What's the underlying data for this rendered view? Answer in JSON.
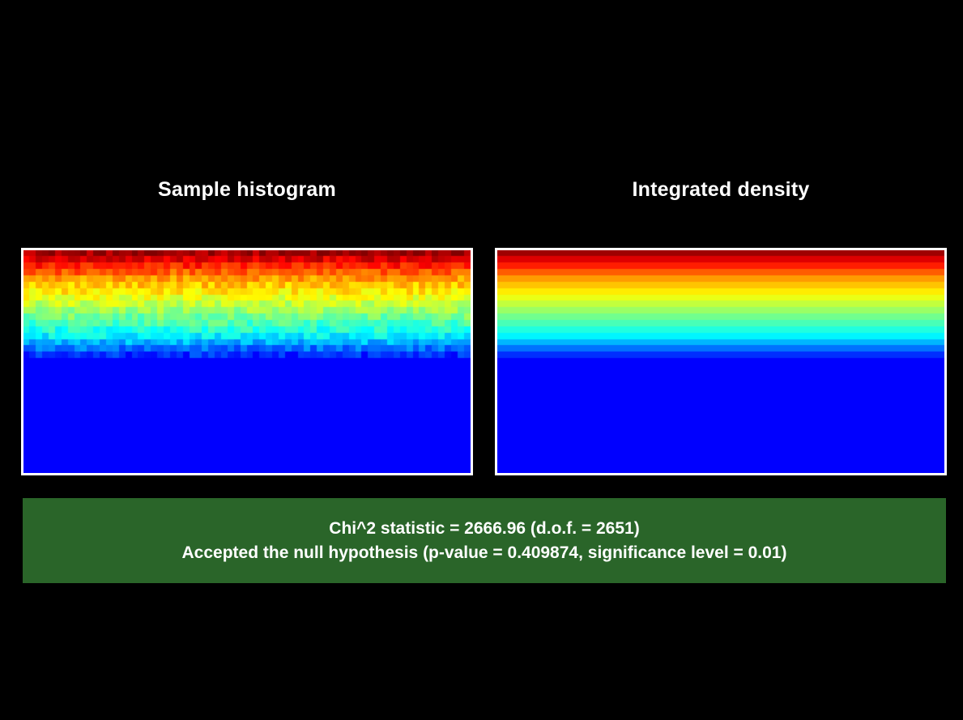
{
  "chart_data": [
    {
      "type": "heatmap",
      "title": "Sample histogram",
      "kind": "sampled",
      "colormap": "jet",
      "colors": {
        "low": "#0000ff",
        "mid": "#00ff00",
        "high": "#ff0000"
      },
      "bins": {
        "cols": 70,
        "rows": 35
      },
      "gradient": {
        "direction": "top-to-bottom",
        "stops": [
          {
            "y": 0.0,
            "v": 1.0
          },
          {
            "y": 0.13,
            "v": 0.72
          },
          {
            "y": 0.29,
            "v": 0.5
          },
          {
            "y": 0.39,
            "v": 0.36
          },
          {
            "y": 0.48,
            "v": 0.15
          },
          {
            "y": 0.5,
            "v": 0.0
          },
          {
            "y": 1.0,
            "v": 0.0
          }
        ]
      },
      "noise": 0.05
    },
    {
      "type": "heatmap",
      "title": "Integrated density",
      "kind": "smooth",
      "colormap": "jet",
      "colors": {
        "low": "#0000ff",
        "mid": "#00ff00",
        "high": "#ff0000"
      },
      "bins": {
        "cols": 70,
        "rows": 35
      },
      "gradient": {
        "direction": "top-to-bottom",
        "stops": [
          {
            "y": 0.0,
            "v": 1.0
          },
          {
            "y": 0.13,
            "v": 0.72
          },
          {
            "y": 0.29,
            "v": 0.5
          },
          {
            "y": 0.39,
            "v": 0.36
          },
          {
            "y": 0.48,
            "v": 0.15
          },
          {
            "y": 0.5,
            "v": 0.0
          },
          {
            "y": 1.0,
            "v": 0.0
          }
        ]
      },
      "noise": 0
    }
  ],
  "result": {
    "line1": "Chi^2 statistic = 2666.96 (d.o.f. = 2651)",
    "line2": "Accepted the null hypothesis (p-value = 0.409874, significance level = 0.01)",
    "chi2": 2666.96,
    "dof": 2651,
    "p_value": 0.409874,
    "significance_level": 0.01,
    "background_color": "#2a6529"
  }
}
